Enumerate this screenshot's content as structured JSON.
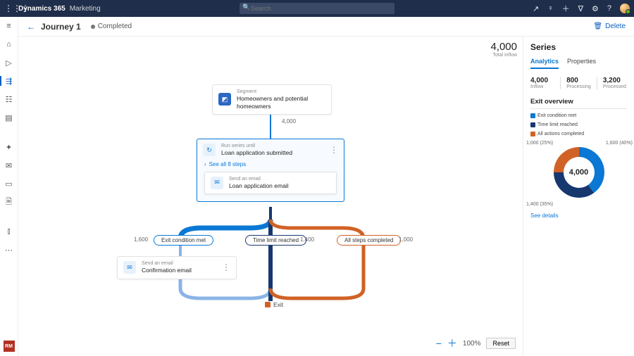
{
  "topbar": {
    "brand": "Dynamics 365",
    "area": "Marketing",
    "search_placeholder": "Search"
  },
  "header": {
    "title": "Journey 1",
    "status": "Completed",
    "delete": "Delete"
  },
  "canvas": {
    "inflow_value": "4,000",
    "inflow_label": "Total inflow",
    "segment": {
      "overline": "Segment",
      "label": "Homeowners and potential homeowners"
    },
    "segment_out": "4,000",
    "series": {
      "overline": "Run series until",
      "label": "Loan application submitted",
      "see_all": "See all 8 steps",
      "inner_overline": "Send an email",
      "inner_label": "Loan application email"
    },
    "branches": {
      "exit_cond": {
        "pill": "Exit condition met",
        "count": "1,600"
      },
      "time_limit": {
        "pill": "Time limit reached",
        "count": "1,400"
      },
      "all_steps": {
        "pill": "All steps completed",
        "count": "1,000"
      }
    },
    "confirm": {
      "overline": "Send an email",
      "label": "Confirmation email"
    },
    "exit": "Exit",
    "zoom": {
      "pct": "100%",
      "reset": "Reset"
    }
  },
  "panel": {
    "title": "Series",
    "tabs": {
      "analytics": "Analytics",
      "properties": "Properties"
    },
    "stats": [
      {
        "n": "4,000",
        "s": "Inflow"
      },
      {
        "n": "800",
        "s": "Processing"
      },
      {
        "n": "3,200",
        "s": "Processed"
      }
    ],
    "exit_overview": {
      "title": "Exit overview",
      "legend": [
        {
          "label": "Exit condition met",
          "color": "#0a78d4"
        },
        {
          "label": "Time limit reached",
          "color": "#17376f"
        },
        {
          "label": "All actions completed",
          "color": "#d06226"
        }
      ],
      "donut": {
        "center": "4,000",
        "segments": [
          {
            "label": "1,600 (40%)",
            "value": 40,
            "color": "#0a78d4"
          },
          {
            "label": "1,400 (35%)",
            "value": 35,
            "color": "#17376f"
          },
          {
            "label": "1,000 (25%)",
            "value": 25,
            "color": "#d06226"
          }
        ]
      },
      "see_details": "See details"
    }
  },
  "colors": {
    "blue": "#0a78d4",
    "navy": "#17376f",
    "orange": "#d06226",
    "card_blue": "#2b67c5"
  }
}
